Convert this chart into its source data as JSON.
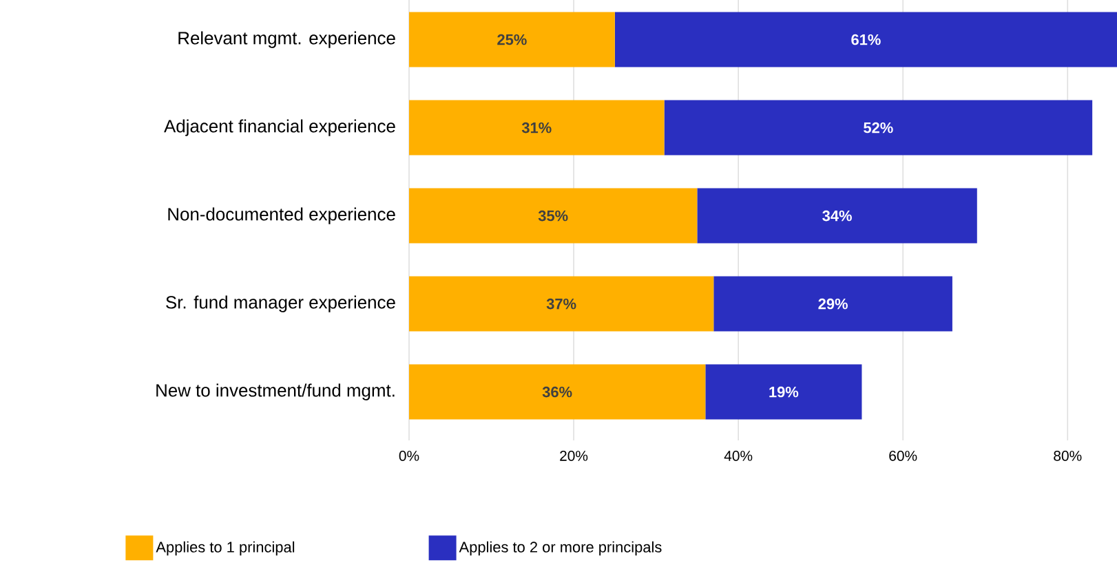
{
  "chart_data": {
    "type": "bar",
    "orientation": "horizontal",
    "stacked": true,
    "categories": [
      "Relevant mgmt. experience",
      "Adjacent financial experience",
      "Non-documented experience",
      "Sr. fund manager experience",
      "New to investment/fund mgmt."
    ],
    "series": [
      {
        "name": "Applies to 1 principal",
        "color": "#ffb000",
        "values": [
          25,
          31,
          35,
          37,
          36
        ],
        "value_labels": [
          "25%",
          "31%",
          "35%",
          "37%",
          "36%"
        ]
      },
      {
        "name": "Applies to 2 or more principals",
        "color": "#2a2fc0",
        "values": [
          61,
          52,
          34,
          29,
          19
        ],
        "value_labels": [
          "61%",
          "52%",
          "34%",
          "29%",
          "19%"
        ]
      }
    ],
    "xlim": [
      0,
      86
    ],
    "xticks": [
      {
        "value": 0,
        "label": "0%"
      },
      {
        "value": 20,
        "label": "20%"
      },
      {
        "value": 40,
        "label": "40%"
      },
      {
        "value": 60,
        "label": "60%"
      },
      {
        "value": 80,
        "label": "80%"
      }
    ],
    "grid": "x",
    "legend": "bottom"
  }
}
